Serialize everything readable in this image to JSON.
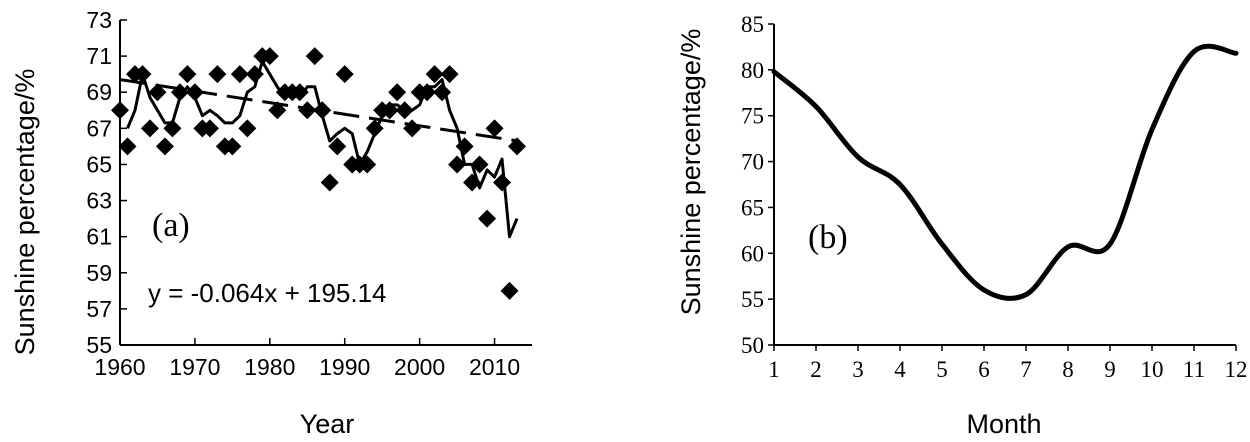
{
  "chart_data": [
    {
      "type": "scatter",
      "panel_label": "(a)",
      "xlabel": "Year",
      "ylabel": "Sunshine percentage/%",
      "xlim": [
        1960,
        2015
      ],
      "ylim": [
        55,
        73
      ],
      "x_ticks": [
        1960,
        1970,
        1980,
        1990,
        2000,
        2010
      ],
      "y_ticks": [
        55,
        57,
        59,
        61,
        63,
        65,
        67,
        69,
        71,
        73
      ],
      "annotation": "y = -0.064x + 195.14",
      "trend": {
        "slope": -0.064,
        "intercept": 195.14,
        "x_range": [
          1960,
          2013
        ]
      },
      "series": [
        {
          "style": "markers",
          "x": [
            1960,
            1961,
            1962,
            1963,
            1964,
            1965,
            1966,
            1967,
            1968,
            1969,
            1970,
            1971,
            1972,
            1973,
            1974,
            1975,
            1976,
            1977,
            1978,
            1979,
            1980,
            1981,
            1982,
            1983,
            1984,
            1985,
            1986,
            1987,
            1988,
            1989,
            1990,
            1991,
            1992,
            1993,
            1994,
            1995,
            1996,
            1997,
            1998,
            1999,
            2000,
            2001,
            2002,
            2003,
            2004,
            2005,
            2006,
            2007,
            2008,
            2009,
            2010,
            2011,
            2012,
            2013
          ],
          "y": [
            68,
            66,
            70,
            70,
            67,
            69,
            66,
            67,
            69,
            70,
            69,
            67,
            67,
            70,
            66,
            66,
            70,
            67,
            70,
            71,
            71,
            68,
            69,
            69,
            69,
            68,
            71,
            68,
            64,
            66,
            70,
            65,
            65,
            65,
            67,
            68,
            68,
            69,
            68,
            67,
            69,
            69,
            70,
            69,
            70,
            65,
            66,
            64,
            65,
            62,
            67,
            64,
            58,
            66
          ]
        },
        {
          "style": "moving-average",
          "x": [
            1961,
            1962,
            1963,
            1964,
            1965,
            1966,
            1967,
            1968,
            1969,
            1970,
            1971,
            1972,
            1973,
            1974,
            1975,
            1976,
            1977,
            1978,
            1979,
            1980,
            1981,
            1982,
            1983,
            1984,
            1985,
            1986,
            1987,
            1988,
            1989,
            1990,
            1991,
            1992,
            1993,
            1994,
            1995,
            1996,
            1997,
            1998,
            1999,
            2000,
            2001,
            2002,
            2003,
            2004,
            2005,
            2006,
            2007,
            2008,
            2009,
            2010,
            2011,
            2012,
            2013
          ],
          "y": [
            67,
            68,
            70,
            68.7,
            68,
            67.3,
            67.3,
            68.7,
            69.3,
            68.7,
            67.7,
            68,
            67.7,
            67.3,
            67.3,
            67.7,
            69,
            69.3,
            70.7,
            70,
            69.3,
            68.7,
            69,
            68.7,
            69.3,
            69.3,
            67.7,
            66.3,
            66.7,
            67,
            66.7,
            65,
            65.7,
            66.7,
            67.7,
            68.3,
            68.3,
            68,
            68,
            68.3,
            69.3,
            69.3,
            69.7,
            68,
            67,
            65,
            65,
            63.7,
            64.7,
            64.3,
            65.3,
            61,
            62
          ]
        }
      ]
    },
    {
      "type": "line",
      "panel_label": "(b)",
      "xlabel": "Month",
      "ylabel": "Sunshine percentage/%",
      "xlim": [
        1,
        12
      ],
      "ylim": [
        50,
        85
      ],
      "x_ticks": [
        1,
        2,
        3,
        4,
        5,
        6,
        7,
        8,
        9,
        10,
        11,
        12
      ],
      "y_ticks": [
        50,
        55,
        60,
        65,
        70,
        75,
        80,
        85
      ],
      "series": [
        {
          "x": [
            1,
            2,
            3,
            4,
            5,
            6,
            7,
            8,
            9,
            10,
            11,
            12
          ],
          "y": [
            79.8,
            76,
            70.5,
            67.5,
            61,
            56,
            55.5,
            60.7,
            61,
            73.5,
            82,
            81.8
          ]
        }
      ]
    }
  ]
}
